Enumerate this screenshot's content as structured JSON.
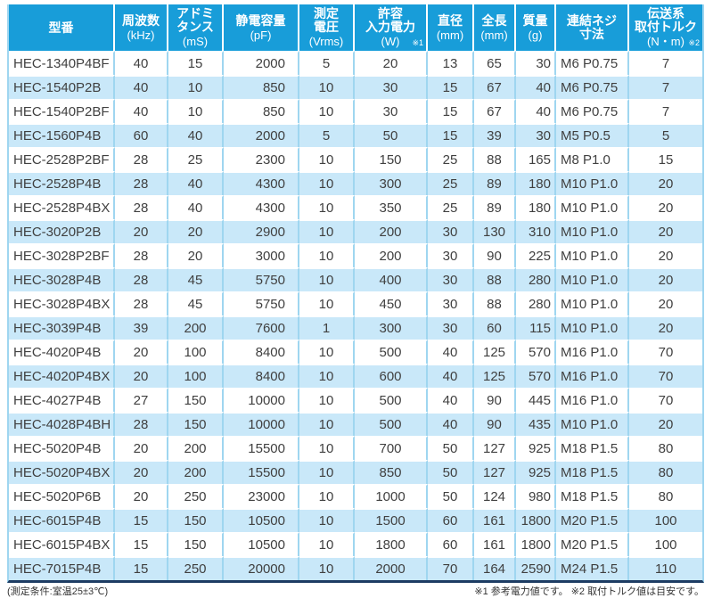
{
  "colors": {
    "header-bg": "#189dd9",
    "header-text": "#ffffff",
    "row-alt-bg": "#c9e8f9",
    "row-bg": "#ffffff",
    "cell-border": "#9fd6f0",
    "row-divider": "#ffffff",
    "table-bottom-border": "#1d3c63",
    "body-text": "#404040",
    "footnote-text": "#333333"
  },
  "table": {
    "columns": [
      {
        "lines": [
          "型番"
        ],
        "unit": "",
        "note": ""
      },
      {
        "lines": [
          "周波数"
        ],
        "unit": "(kHz)",
        "note": ""
      },
      {
        "lines": [
          "アドミ",
          "タンス"
        ],
        "unit": "(mS)",
        "note": ""
      },
      {
        "lines": [
          "静電容量"
        ],
        "unit": "(pF)",
        "note": ""
      },
      {
        "lines": [
          "測定",
          "電圧"
        ],
        "unit": "(Vrms)",
        "note": ""
      },
      {
        "lines": [
          "許容",
          "入力電力"
        ],
        "unit": "(W)",
        "note": "※1"
      },
      {
        "lines": [
          "直径"
        ],
        "unit": "(mm)",
        "note": ""
      },
      {
        "lines": [
          "全長"
        ],
        "unit": "(mm)",
        "note": ""
      },
      {
        "lines": [
          "質量"
        ],
        "unit": "(g)",
        "note": ""
      },
      {
        "lines": [
          "連結ネジ",
          "寸法"
        ],
        "unit": "",
        "note": ""
      },
      {
        "lines": [
          "伝送系",
          "取付トルク"
        ],
        "unit": "(N・m)",
        "note": "※2"
      }
    ],
    "rows": [
      [
        "HEC-1340P4BF",
        "40",
        "15",
        "2000",
        "5",
        "20",
        "13",
        "65",
        "30",
        "M6 P0.75",
        "7"
      ],
      [
        "HEC-1540P2B",
        "40",
        "10",
        "850",
        "10",
        "30",
        "15",
        "67",
        "40",
        "M6 P0.75",
        "7"
      ],
      [
        "HEC-1540P2BF",
        "40",
        "10",
        "850",
        "10",
        "30",
        "15",
        "67",
        "40",
        "M6 P0.75",
        "7"
      ],
      [
        "HEC-1560P4B",
        "60",
        "40",
        "2000",
        "5",
        "50",
        "15",
        "39",
        "30",
        "M5 P0.5",
        "5"
      ],
      [
        "HEC-2528P2BF",
        "28",
        "25",
        "2300",
        "10",
        "150",
        "25",
        "88",
        "165",
        "M8 P1.0",
        "15"
      ],
      [
        "HEC-2528P4B",
        "28",
        "40",
        "4300",
        "10",
        "300",
        "25",
        "89",
        "180",
        "M10 P1.0",
        "20"
      ],
      [
        "HEC-2528P4BX",
        "28",
        "40",
        "4300",
        "10",
        "350",
        "25",
        "89",
        "180",
        "M10 P1.0",
        "20"
      ],
      [
        "HEC-3020P2B",
        "20",
        "20",
        "2900",
        "10",
        "200",
        "30",
        "130",
        "310",
        "M10 P1.0",
        "20"
      ],
      [
        "HEC-3028P2BF",
        "28",
        "20",
        "3000",
        "10",
        "200",
        "30",
        "90",
        "225",
        "M10 P1.0",
        "20"
      ],
      [
        "HEC-3028P4B",
        "28",
        "45",
        "5750",
        "10",
        "400",
        "30",
        "88",
        "280",
        "M10 P1.0",
        "20"
      ],
      [
        "HEC-3028P4BX",
        "28",
        "45",
        "5750",
        "10",
        "450",
        "30",
        "88",
        "280",
        "M10 P1.0",
        "20"
      ],
      [
        "HEC-3039P4B",
        "39",
        "200",
        "7600",
        "1",
        "300",
        "30",
        "60",
        "115",
        "M10 P1.0",
        "20"
      ],
      [
        "HEC-4020P4B",
        "20",
        "100",
        "8400",
        "10",
        "500",
        "40",
        "125",
        "570",
        "M16 P1.0",
        "70"
      ],
      [
        "HEC-4020P4BX",
        "20",
        "100",
        "8400",
        "10",
        "600",
        "40",
        "125",
        "570",
        "M16 P1.0",
        "70"
      ],
      [
        "HEC-4027P4B",
        "27",
        "150",
        "10000",
        "10",
        "500",
        "40",
        "90",
        "445",
        "M16 P1.0",
        "70"
      ],
      [
        "HEC-4028P4BH",
        "28",
        "150",
        "10000",
        "10",
        "500",
        "40",
        "90",
        "435",
        "M10 P1.0",
        "20"
      ],
      [
        "HEC-5020P4B",
        "20",
        "200",
        "15500",
        "10",
        "700",
        "50",
        "127",
        "925",
        "M18 P1.5",
        "80"
      ],
      [
        "HEC-5020P4BX",
        "20",
        "200",
        "15500",
        "10",
        "850",
        "50",
        "127",
        "925",
        "M18 P1.5",
        "80"
      ],
      [
        "HEC-5020P6B",
        "20",
        "250",
        "23000",
        "10",
        "1000",
        "50",
        "124",
        "980",
        "M18 P1.5",
        "80"
      ],
      [
        "HEC-6015P4B",
        "15",
        "150",
        "10500",
        "10",
        "1500",
        "60",
        "161",
        "1800",
        "M20 P1.5",
        "100"
      ],
      [
        "HEC-6015P4BX",
        "15",
        "150",
        "10500",
        "10",
        "1800",
        "60",
        "161",
        "1800",
        "M20 P1.5",
        "100"
      ],
      [
        "HEC-7015P4B",
        "15",
        "250",
        "20000",
        "10",
        "2000",
        "70",
        "164",
        "2590",
        "M24 P1.5",
        "110"
      ]
    ]
  },
  "footer": {
    "left": "(測定条件:室温25±3℃)",
    "right": "※1 参考電力値です。 ※2 取付トルク値は目安です。"
  }
}
